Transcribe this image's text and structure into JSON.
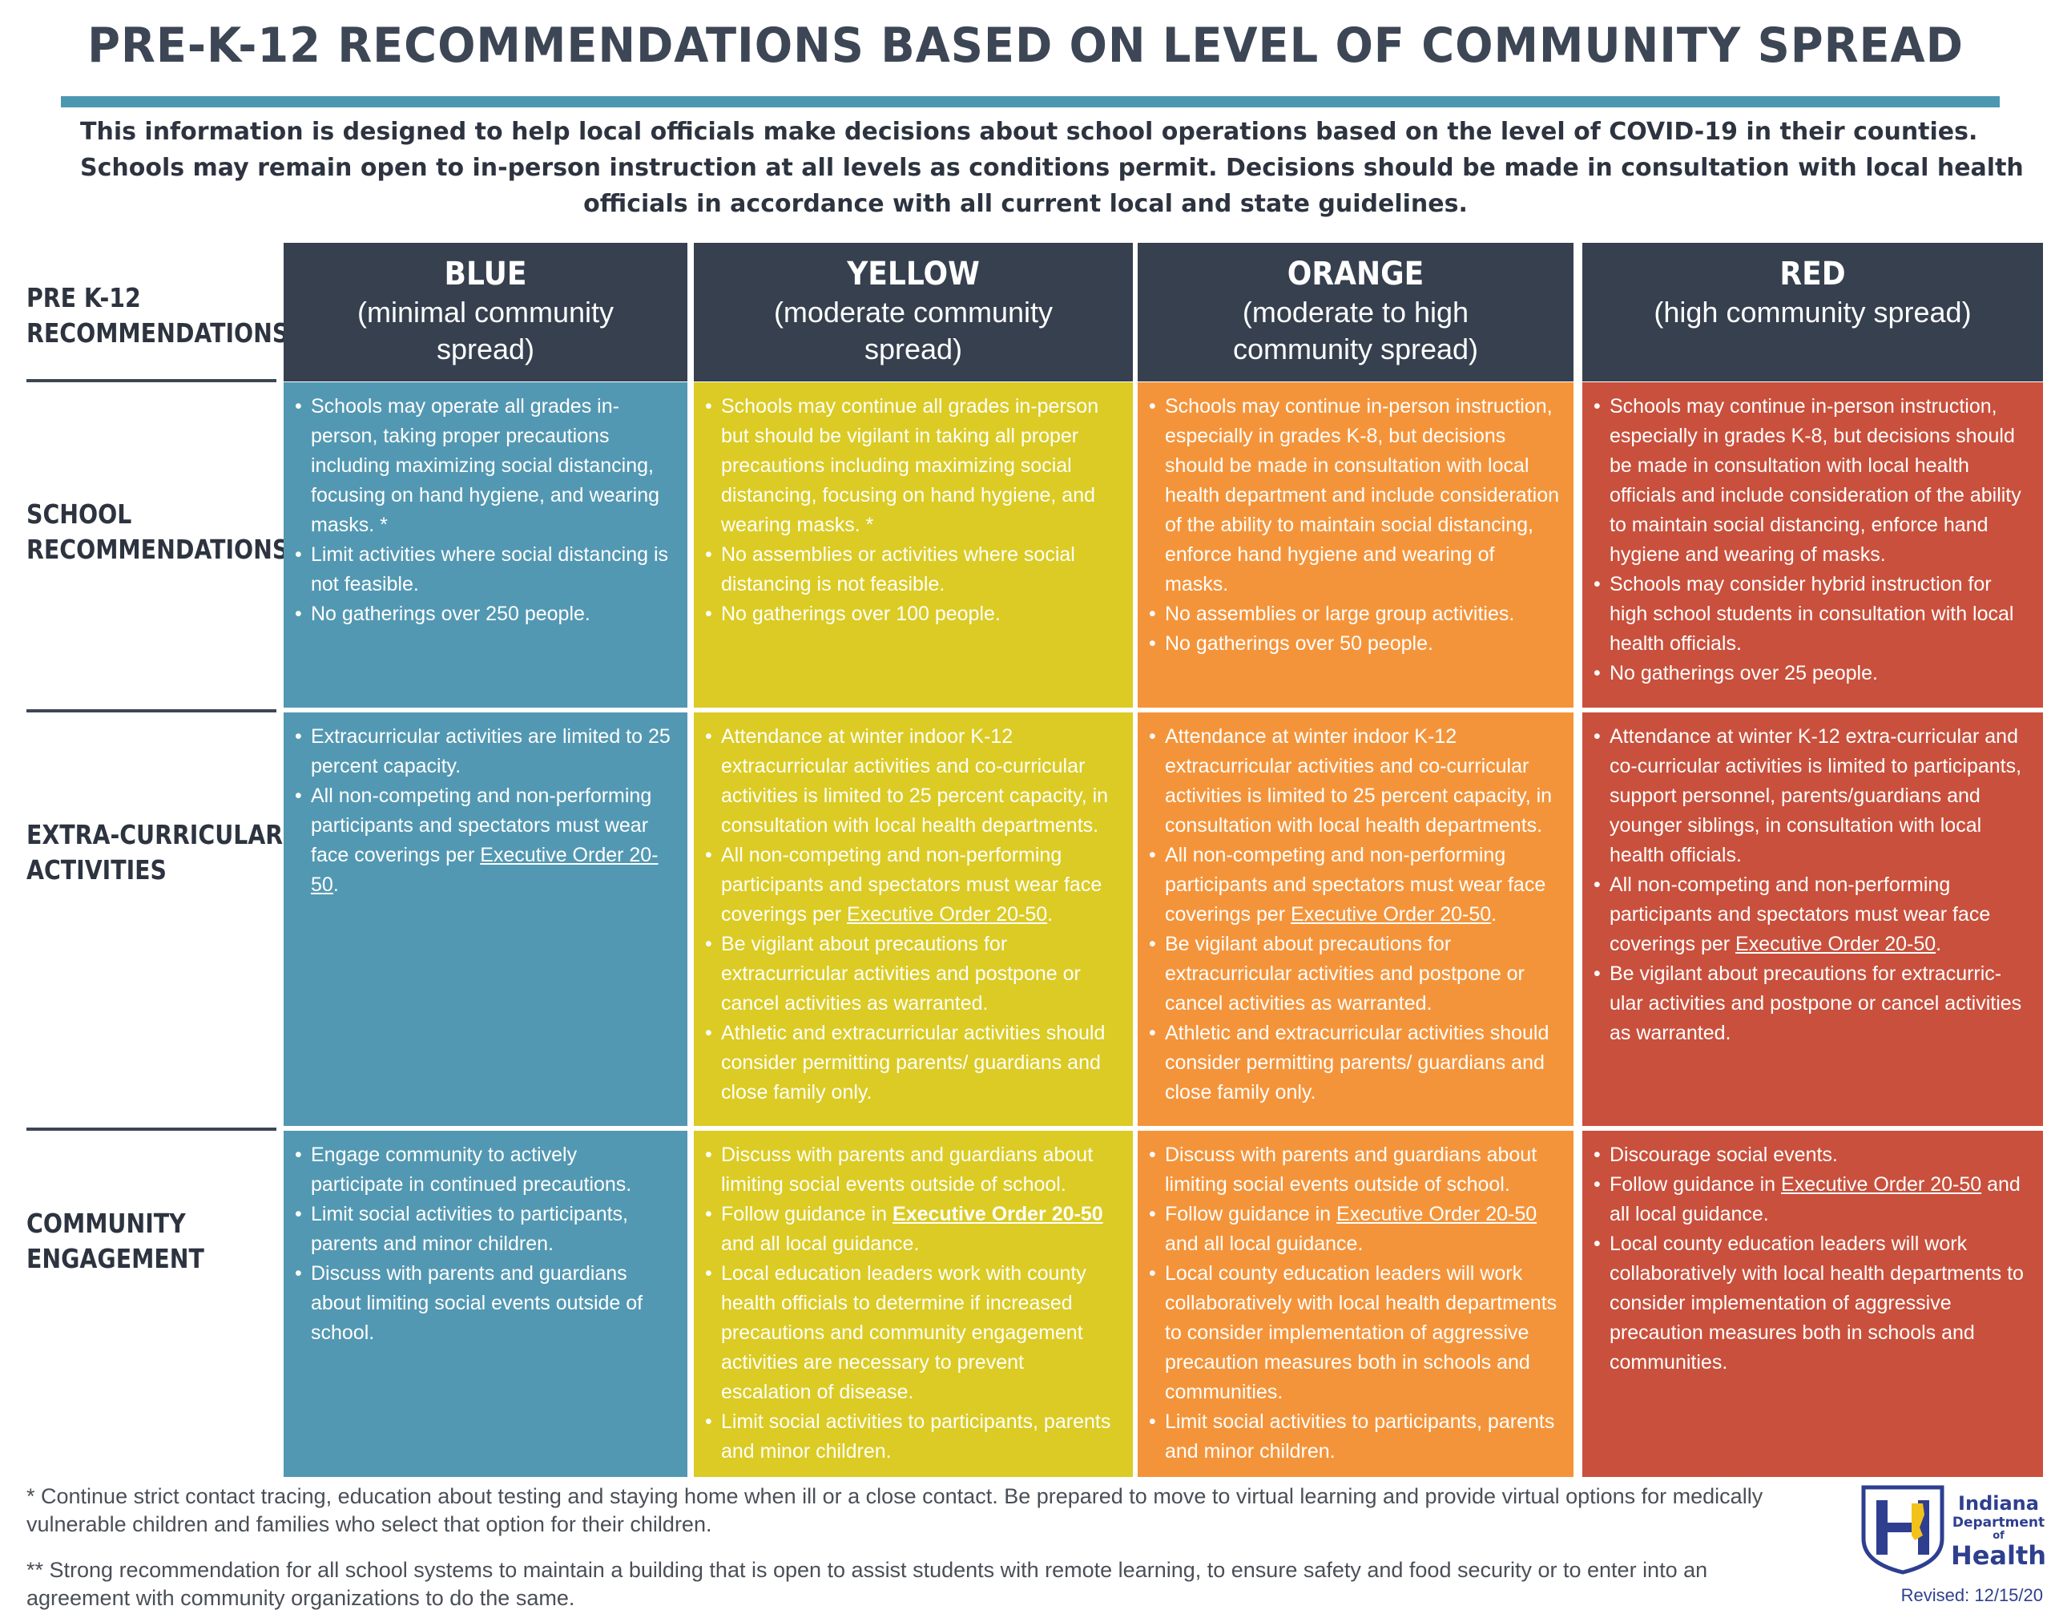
{
  "title": "PRE-K-12 RECOMMENDATIONS BASED ON LEVEL OF COMMUNITY SPREAD",
  "intro": {
    "line1": "This information is designed to help local officials make decisions about school operations based on the level of COVID-19 in their counties.",
    "line2": "Schools may remain open to in-person instruction at all levels as conditions permit. Decisions should be made in consultation with local health",
    "line3": "officials in accordance with all current local and state guidelines."
  },
  "row_labels": {
    "header": [
      "PRE K-12",
      "RECOMMENDATIONS"
    ],
    "school": [
      "SCHOOL",
      "RECOMMENDATIONS"
    ],
    "extra": [
      "EXTRA-CURRICULAR",
      "ACTIVITIES"
    ],
    "community": [
      "COMMUNITY",
      "ENGAGEMENT"
    ]
  },
  "columns": [
    {
      "level": "BLUE",
      "desc": "(minimal community spread)",
      "color": "#5398b2"
    },
    {
      "level": "YELLOW",
      "desc": "(moderate community spread)",
      "color": "#dbcb24"
    },
    {
      "level": "ORANGE",
      "desc": "(moderate to high community spread)",
      "color": "#f4943a"
    },
    {
      "level": "RED",
      "desc": "(high community spread)",
      "color": "#c9503c"
    }
  ],
  "header_bg": "#36404f",
  "cells": {
    "school": {
      "blue": [
        "Schools may operate all grades in-person, taking proper precautions including maximizing social distancing, focusing on hand hygiene, and wearing masks. *",
        "Limit activities where social distancing is not feasible.",
        "No gatherings over 250 people."
      ],
      "yellow": [
        "Schools may continue all grades in-person but should be vigilant in taking all proper precautions including maximizing social distancing, focusing on hand hygiene, and wearing masks. *",
        "No assemblies or activities where social distancing is not feasible.",
        "No gatherings over 100 people."
      ],
      "orange": [
        "Schools may continue in-person instruction, especially in grades K-8, but decisions should be made in consultation with local health department and include consideration of the ability to maintain social distancing, enforce hand hygiene and wearing of masks.",
        "No assemblies or large group activities.",
        "No gatherings over 50 people."
      ],
      "red": [
        "Schools may continue in-person instruction, especially in grades K-8, but decisions should be made in consultation with local health officials and include consideration of the ability to maintain social distancing, enforce hand hygiene and wearing of masks.",
        "Schools may consider hybrid instruction for high school students in consultation with local health officials.",
        "No gatherings over 25 people."
      ]
    },
    "extra": {
      "blue": {
        "b1": "Extracurricular activities are limited to 25 percent capacity.",
        "b2_pre": "All non-competing and non-performing participants and spectators must wear face coverings per ",
        "b2_link": "Executive Order 20-50",
        "b2_post": "."
      },
      "yellow": {
        "b1": "Attendance at winter indoor K-12 extracurricular activities and co-curricular activities is limited to 25 percent capacity, in consultation with local health departments.",
        "b2_pre": "All non-competing and non-performing participants and spectators must wear face coverings per ",
        "b2_link": "Executive Order 20-50",
        "b2_post": ".",
        "b3": "Be vigilant about precautions for extracurricular activities and postpone or cancel activities as warranted.",
        "b4": "Athletic and extracurricular activities should consider permitting parents/ guardians and close family only."
      },
      "orange": {
        "b1": "Attendance at winter indoor K-12 extracurricular activities and co-curricular activities is limited to 25 percent capacity, in consultation with local health departments.",
        "b2_pre": "All non-competing and non-performing participants and spectators must wear face coverings per ",
        "b2_link": "Executive Order 20-50",
        "b2_post": ".",
        "b3": "Be vigilant about precautions for extracurricular activities and postpone or cancel activities as warranted.",
        "b4": "Athletic and extracurricular activities should consider permitting parents/ guardians and close family only."
      },
      "red": {
        "b1": "Attendance at winter K-12 extra-curricular and co-curricular activities is limited to participants, support personnel, parents/guardians and younger siblings, in consultation with local health officials.",
        "b2_pre": "All non-competing and non-performing participants and spectators must wear face coverings per ",
        "b2_link": "Executive Order 20-50",
        "b2_post": ".",
        "b3": "Be vigilant about precautions for extracurric-ular activities and postpone or cancel activities as warranted."
      }
    },
    "community": {
      "blue": {
        "b1": "Engage community to actively participate in continued precautions.",
        "b2": "Limit social activities to participants, parents and minor children.",
        "b3": "Discuss with parents and guardians about limiting social events outside of school."
      },
      "yellow": {
        "b1": "Discuss with parents and guardians about limiting social events outside of school.",
        "b2_pre": "Follow guidance in ",
        "b2_link": "Executive Order 20-50",
        "b2_post": " and all local guidance.",
        "b3": "Local education leaders work with county health officials to determine if increased precautions and community engagement activities are necessary to prevent escalation of disease.",
        "b4": "Limit social activities to participants, parents and minor children."
      },
      "orange": {
        "b1": "Discuss with parents and guardians about limiting social events outside of school.",
        "b2_pre": "Follow guidance in ",
        "b2_link": "Executive Order  20-50",
        "b2_post": " and all local guidance.",
        "b3": "Local county education leaders will work collaboratively with local health departments to consider implementation of aggressive precaution measures both in schools and communities.",
        "b4": "Limit social activities to participants, parents and minor children."
      },
      "red": {
        "b1": "Discourage social events.",
        "b2_pre": "Follow guidance in ",
        "b2_link": "Executive Order 20-50",
        "b2_post": " and all local guidance.",
        "b3": "Local county education leaders will work collaboratively with local health departments to consider implementation of aggressive precaution measures both in schools and communities."
      }
    }
  },
  "footnotes": {
    "one": "* Continue strict contact tracing, education about testing and staying home when ill or a close contact. Be prepared to move to virtual learning and provide virtual options for medically vulnerable children and families who select that option for their children.",
    "two": "** Strong recommendation for all school systems to maintain a building that is open to assist students with remote learning, to ensure safety and food security or to enter into an agreement with community organizations to do the same."
  },
  "logo": {
    "name_line1": "Indiana",
    "name_line2": "Department",
    "name_line3": "of",
    "name_line4": "Health",
    "icon": "indiana-state-h-icon",
    "color": "#2e3f8f"
  },
  "revised": "Revised: 12/15/20"
}
